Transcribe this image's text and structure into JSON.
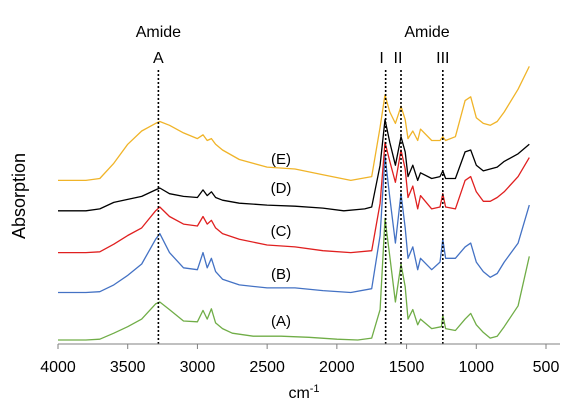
{
  "chart_data": {
    "type": "line",
    "title": "",
    "xlabel": "cm",
    "xlabel_superscript": "-1",
    "ylabel": "Absorption",
    "xlim": [
      4000,
      500
    ],
    "x_reversed": true,
    "x_ticks": [
      4000,
      3500,
      3000,
      2500,
      2000,
      1500,
      1000,
      500
    ],
    "y_ticks_shown": false,
    "grid": false,
    "legend": "none",
    "series": [
      {
        "name": "(A)",
        "color": "#70ad47",
        "points": [
          [
            4000,
            0
          ],
          [
            3800,
            0
          ],
          [
            3700,
            0.02
          ],
          [
            3600,
            0.18
          ],
          [
            3500,
            0.35
          ],
          [
            3400,
            0.55
          ],
          [
            3300,
            0.95
          ],
          [
            3270,
            1.0
          ],
          [
            3200,
            0.8
          ],
          [
            3100,
            0.5
          ],
          [
            3000,
            0.48
          ],
          [
            2960,
            0.78
          ],
          [
            2930,
            0.55
          ],
          [
            2900,
            0.82
          ],
          [
            2870,
            0.45
          ],
          [
            2820,
            0.3
          ],
          [
            2750,
            0.18
          ],
          [
            2600,
            0.1
          ],
          [
            2400,
            0.1
          ],
          [
            2200,
            0.07
          ],
          [
            2000,
            0.02
          ],
          [
            1850,
            0.0
          ],
          [
            1750,
            0.05
          ],
          [
            1690,
            0.8
          ],
          [
            1655,
            3.2
          ],
          [
            1620,
            2.2
          ],
          [
            1580,
            1.0
          ],
          [
            1540,
            2.0
          ],
          [
            1510,
            1.4
          ],
          [
            1490,
            0.55
          ],
          [
            1455,
            0.8
          ],
          [
            1420,
            0.4
          ],
          [
            1400,
            0.55
          ],
          [
            1320,
            0.3
          ],
          [
            1250,
            0.35
          ],
          [
            1240,
            0.65
          ],
          [
            1220,
            0.3
          ],
          [
            1150,
            0.25
          ],
          [
            1080,
            0.55
          ],
          [
            1040,
            0.7
          ],
          [
            1000,
            0.4
          ],
          [
            950,
            0.2
          ],
          [
            900,
            0.05
          ],
          [
            850,
            0.1
          ],
          [
            800,
            0.35
          ],
          [
            700,
            0.9
          ],
          [
            620,
            2.2
          ]
        ]
      },
      {
        "name": "(B)",
        "color": "#4472c4",
        "points": [
          [
            4000,
            0
          ],
          [
            3800,
            0
          ],
          [
            3700,
            0.02
          ],
          [
            3600,
            0.2
          ],
          [
            3500,
            0.45
          ],
          [
            3400,
            0.75
          ],
          [
            3300,
            1.4
          ],
          [
            3270,
            1.55
          ],
          [
            3200,
            1.05
          ],
          [
            3100,
            0.65
          ],
          [
            3000,
            0.6
          ],
          [
            2960,
            1.05
          ],
          [
            2930,
            0.65
          ],
          [
            2900,
            0.9
          ],
          [
            2870,
            0.55
          ],
          [
            2820,
            0.35
          ],
          [
            2700,
            0.2
          ],
          [
            2500,
            0.12
          ],
          [
            2300,
            0.12
          ],
          [
            2100,
            0.05
          ],
          [
            1900,
            0.0
          ],
          [
            1750,
            0.1
          ],
          [
            1690,
            1.5
          ],
          [
            1655,
            3.6
          ],
          [
            1620,
            2.5
          ],
          [
            1580,
            1.3
          ],
          [
            1540,
            2.6
          ],
          [
            1510,
            1.7
          ],
          [
            1490,
            0.9
          ],
          [
            1455,
            1.2
          ],
          [
            1420,
            0.6
          ],
          [
            1400,
            0.9
          ],
          [
            1320,
            0.6
          ],
          [
            1260,
            0.8
          ],
          [
            1240,
            1.4
          ],
          [
            1220,
            0.9
          ],
          [
            1150,
            0.9
          ],
          [
            1080,
            1.2
          ],
          [
            1040,
            1.3
          ],
          [
            1000,
            0.8
          ],
          [
            950,
            0.55
          ],
          [
            900,
            0.4
          ],
          [
            850,
            0.5
          ],
          [
            800,
            0.8
          ],
          [
            700,
            1.3
          ],
          [
            620,
            2.3
          ]
        ]
      },
      {
        "name": "(C)",
        "color": "#e02020",
        "points": [
          [
            4000,
            0
          ],
          [
            3800,
            0
          ],
          [
            3700,
            0.02
          ],
          [
            3600,
            0.22
          ],
          [
            3500,
            0.45
          ],
          [
            3400,
            0.65
          ],
          [
            3300,
            1.1
          ],
          [
            3270,
            1.2
          ],
          [
            3200,
            0.95
          ],
          [
            3100,
            0.75
          ],
          [
            3000,
            0.7
          ],
          [
            2960,
            0.95
          ],
          [
            2930,
            0.75
          ],
          [
            2900,
            0.85
          ],
          [
            2870,
            0.65
          ],
          [
            2820,
            0.5
          ],
          [
            2700,
            0.35
          ],
          [
            2500,
            0.2
          ],
          [
            2300,
            0.15
          ],
          [
            2100,
            0.05
          ],
          [
            1900,
            0.0
          ],
          [
            1750,
            0.05
          ],
          [
            1690,
            1.3
          ],
          [
            1655,
            2.9
          ],
          [
            1620,
            2.4
          ],
          [
            1580,
            1.85
          ],
          [
            1540,
            2.7
          ],
          [
            1510,
            2.2
          ],
          [
            1490,
            1.45
          ],
          [
            1455,
            1.75
          ],
          [
            1420,
            1.15
          ],
          [
            1400,
            1.5
          ],
          [
            1320,
            1.15
          ],
          [
            1260,
            1.2
          ],
          [
            1240,
            1.55
          ],
          [
            1220,
            1.2
          ],
          [
            1150,
            1.15
          ],
          [
            1080,
            1.9
          ],
          [
            1040,
            2.0
          ],
          [
            1000,
            1.6
          ],
          [
            950,
            1.35
          ],
          [
            900,
            1.35
          ],
          [
            850,
            1.45
          ],
          [
            800,
            1.6
          ],
          [
            700,
            2.0
          ],
          [
            620,
            2.5
          ]
        ]
      },
      {
        "name": "(D)",
        "color": "#000000",
        "points": [
          [
            4000,
            0
          ],
          [
            3800,
            0
          ],
          [
            3700,
            0.05
          ],
          [
            3600,
            0.22
          ],
          [
            3500,
            0.3
          ],
          [
            3400,
            0.38
          ],
          [
            3300,
            0.55
          ],
          [
            3270,
            0.6
          ],
          [
            3200,
            0.45
          ],
          [
            3100,
            0.38
          ],
          [
            3000,
            0.35
          ],
          [
            2960,
            0.55
          ],
          [
            2930,
            0.4
          ],
          [
            2900,
            0.5
          ],
          [
            2870,
            0.35
          ],
          [
            2820,
            0.28
          ],
          [
            2700,
            0.2
          ],
          [
            2500,
            0.15
          ],
          [
            2300,
            0.12
          ],
          [
            2100,
            0.07
          ],
          [
            1950,
            0.0
          ],
          [
            1800,
            0.05
          ],
          [
            1750,
            0.1
          ],
          [
            1690,
            1.2
          ],
          [
            1655,
            2.4
          ],
          [
            1620,
            1.8
          ],
          [
            1580,
            1.2
          ],
          [
            1540,
            1.95
          ],
          [
            1510,
            1.55
          ],
          [
            1490,
            0.9
          ],
          [
            1455,
            1.2
          ],
          [
            1420,
            0.8
          ],
          [
            1400,
            1.0
          ],
          [
            1320,
            0.85
          ],
          [
            1260,
            0.9
          ],
          [
            1240,
            1.05
          ],
          [
            1220,
            0.85
          ],
          [
            1150,
            0.85
          ],
          [
            1080,
            1.55
          ],
          [
            1040,
            1.6
          ],
          [
            1000,
            1.2
          ],
          [
            950,
            1.05
          ],
          [
            900,
            1.1
          ],
          [
            850,
            1.15
          ],
          [
            800,
            1.3
          ],
          [
            700,
            1.5
          ],
          [
            620,
            1.75
          ]
        ]
      },
      {
        "name": "(E)",
        "color": "#f0b429",
        "points": [
          [
            4000,
            0
          ],
          [
            3800,
            0
          ],
          [
            3700,
            0.05
          ],
          [
            3600,
            0.45
          ],
          [
            3500,
            0.95
          ],
          [
            3400,
            1.3
          ],
          [
            3300,
            1.5
          ],
          [
            3270,
            1.55
          ],
          [
            3200,
            1.45
          ],
          [
            3100,
            1.25
          ],
          [
            3000,
            1.1
          ],
          [
            2960,
            1.2
          ],
          [
            2930,
            1.05
          ],
          [
            2900,
            1.1
          ],
          [
            2870,
            0.95
          ],
          [
            2820,
            0.8
          ],
          [
            2700,
            0.55
          ],
          [
            2500,
            0.35
          ],
          [
            2300,
            0.3
          ],
          [
            2100,
            0.15
          ],
          [
            1900,
            0.0
          ],
          [
            1750,
            0.1
          ],
          [
            1690,
            1.4
          ],
          [
            1655,
            2.25
          ],
          [
            1620,
            1.8
          ],
          [
            1580,
            1.5
          ],
          [
            1540,
            1.95
          ],
          [
            1510,
            1.6
          ],
          [
            1490,
            1.1
          ],
          [
            1455,
            1.3
          ],
          [
            1420,
            1.05
          ],
          [
            1400,
            1.35
          ],
          [
            1320,
            1.05
          ],
          [
            1260,
            1.05
          ],
          [
            1240,
            1.15
          ],
          [
            1220,
            1.05
          ],
          [
            1150,
            1.15
          ],
          [
            1080,
            2.1
          ],
          [
            1040,
            2.2
          ],
          [
            1000,
            1.65
          ],
          [
            950,
            1.5
          ],
          [
            900,
            1.45
          ],
          [
            850,
            1.55
          ],
          [
            800,
            1.8
          ],
          [
            700,
            2.4
          ],
          [
            620,
            3.0
          ]
        ]
      }
    ],
    "series_offsets": {
      "(A)": 0,
      "(B)": 1.25,
      "(C)": 2.3,
      "(D)": 3.4,
      "(E)": 4.2
    },
    "annotations": {
      "amide_a_top": "Amide",
      "amide_a_bottom": "A",
      "amide_top": "Amide",
      "amide_i": "I",
      "amide_ii": "II",
      "amide_iii": "III"
    },
    "marker_lines_x": [
      3280,
      1650,
      1540,
      1240
    ]
  }
}
